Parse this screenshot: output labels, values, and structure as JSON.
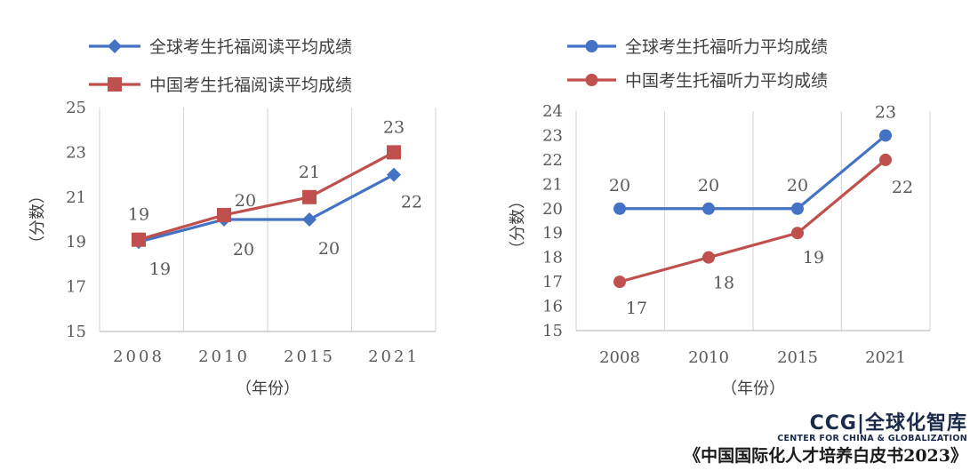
{
  "colors": {
    "blue": "#4472C4",
    "red": "#C0504D",
    "grid": "#D9D9D9",
    "axis": "#BFBFBF"
  },
  "chart_data": [
    {
      "type": "line",
      "categories": [
        "2008",
        "2010",
        "2015",
        "2021"
      ],
      "xlabel": "（年份）",
      "ylabel": "（分数）",
      "ylim": [
        15,
        25
      ],
      "yticks": [
        15,
        17,
        19,
        21,
        23,
        25
      ],
      "grid": "vertical",
      "legend_position": "top",
      "series": [
        {
          "name": "全球考生托福阅读平均成绩",
          "marker": "diamond",
          "color": "#4472C4",
          "values": [
            19,
            20,
            20,
            22
          ],
          "labels": [
            "19",
            "20",
            "20",
            "22"
          ]
        },
        {
          "name": "中国考生托福阅读平均成绩",
          "marker": "square",
          "color": "#C0504D",
          "values": [
            19.1,
            20.2,
            21,
            23
          ],
          "labels": [
            "19",
            "20",
            "21",
            "23"
          ]
        }
      ]
    },
    {
      "type": "line",
      "categories": [
        "2008",
        "2010",
        "2015",
        "2021"
      ],
      "xlabel": "（年份）",
      "ylabel": "（分数）",
      "ylim": [
        15,
        24
      ],
      "yticks": [
        15,
        16,
        17,
        18,
        19,
        20,
        21,
        22,
        23,
        24
      ],
      "grid": "vertical",
      "legend_position": "top",
      "series": [
        {
          "name": "全球考生托福听力平均成绩",
          "marker": "circle",
          "color": "#4472C4",
          "values": [
            20,
            20,
            20,
            23
          ],
          "labels": [
            "20",
            "20",
            "20",
            "23"
          ]
        },
        {
          "name": "中国考生托福听力平均成绩",
          "marker": "circle",
          "color": "#C0504D",
          "values": [
            17,
            18,
            19,
            22
          ],
          "labels": [
            "17",
            "18",
            "19",
            "22"
          ]
        }
      ]
    }
  ],
  "branding": {
    "logo_main": "CCG|全球化智库",
    "logo_sub": "CENTER FOR CHINA & GLOBALIZATION",
    "source": "《中国国际化人才培养白皮书2023》"
  }
}
